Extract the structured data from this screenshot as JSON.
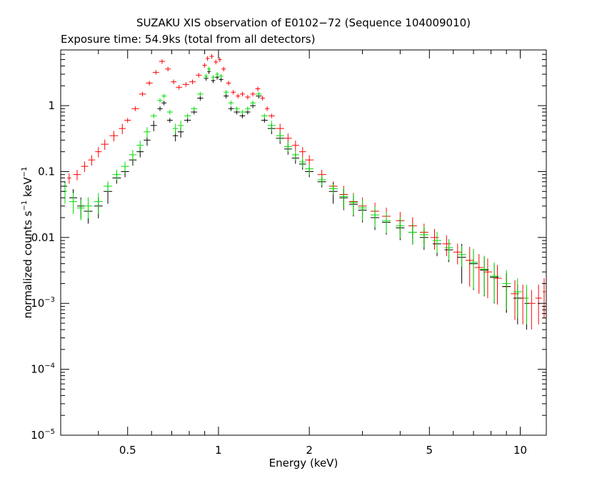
{
  "chart_data": {
    "type": "scatter",
    "title": "SUZAKU XIS observation of E0102−72 (Sequence 104009010)",
    "subtitle": "Exposure time: 54.9ks (total from all detectors)",
    "xlabel": "Energy (keV)",
    "ylabel_text": "normalized counts s",
    "ylabel_unit": "keV",
    "ylabel_exp": "−1",
    "xscale": "log",
    "yscale": "log",
    "xlim": [
      0.3,
      12.2
    ],
    "ylim": [
      1e-05,
      7
    ],
    "grid": false,
    "x_ticks": [
      {
        "value": 0.5,
        "label": "0.5"
      },
      {
        "value": 1,
        "label": "1"
      },
      {
        "value": 2,
        "label": "2"
      },
      {
        "value": 5,
        "label": "5"
      },
      {
        "value": 10,
        "label": "10"
      }
    ],
    "y_ticks": [
      {
        "value": 1,
        "mantissa": "1",
        "exponent": ""
      },
      {
        "value": 0.1,
        "mantissa": "0.1",
        "exponent": ""
      },
      {
        "value": 0.01,
        "mantissa": "0.01",
        "exponent": ""
      },
      {
        "value": 0.001,
        "mantissa": "10",
        "exponent": "−3"
      },
      {
        "value": 0.0001,
        "mantissa": "10",
        "exponent": "−4"
      },
      {
        "value": 1e-05,
        "mantissa": "10",
        "exponent": "−5"
      }
    ],
    "series": [
      {
        "color": "#ff0000",
        "points": [
          [
            0.32,
            0.08
          ],
          [
            0.34,
            0.09
          ],
          [
            0.36,
            0.12
          ],
          [
            0.38,
            0.15
          ],
          [
            0.4,
            0.2
          ],
          [
            0.42,
            0.26
          ],
          [
            0.45,
            0.35
          ],
          [
            0.48,
            0.45
          ],
          [
            0.5,
            0.6
          ],
          [
            0.53,
            0.9
          ],
          [
            0.56,
            1.5
          ],
          [
            0.59,
            2.2
          ],
          [
            0.62,
            3.2
          ],
          [
            0.65,
            4.7
          ],
          [
            0.68,
            3.6
          ],
          [
            0.71,
            2.3
          ],
          [
            0.74,
            1.9
          ],
          [
            0.78,
            2.1
          ],
          [
            0.82,
            2.3
          ],
          [
            0.86,
            2.9
          ],
          [
            0.9,
            4.1
          ],
          [
            0.92,
            5.2
          ],
          [
            0.95,
            5.6
          ],
          [
            0.98,
            4.6
          ],
          [
            1.01,
            5.0
          ],
          [
            1.04,
            3.6
          ],
          [
            1.08,
            2.2
          ],
          [
            1.12,
            1.6
          ],
          [
            1.16,
            1.4
          ],
          [
            1.2,
            1.5
          ],
          [
            1.25,
            1.35
          ],
          [
            1.3,
            1.5
          ],
          [
            1.35,
            1.8
          ],
          [
            1.4,
            1.3
          ],
          [
            1.45,
            0.9
          ],
          [
            1.5,
            0.7
          ],
          [
            1.6,
            0.45
          ],
          [
            1.7,
            0.32
          ],
          [
            1.8,
            0.25
          ],
          [
            1.9,
            0.2
          ],
          [
            2.0,
            0.15
          ],
          [
            2.2,
            0.09
          ],
          [
            2.4,
            0.06
          ],
          [
            2.6,
            0.045
          ],
          [
            2.8,
            0.035
          ],
          [
            3.0,
            0.03
          ],
          [
            3.3,
            0.025
          ],
          [
            3.6,
            0.021
          ],
          [
            4.0,
            0.018
          ],
          [
            4.4,
            0.015
          ],
          [
            4.8,
            0.012
          ],
          [
            5.2,
            0.01
          ],
          [
            5.7,
            0.008
          ],
          [
            6.2,
            0.006
          ],
          [
            6.8,
            0.0045
          ],
          [
            7.3,
            0.0035
          ],
          [
            7.8,
            0.003
          ],
          [
            8.4,
            0.0024
          ],
          [
            9.0,
            0.0018
          ],
          [
            9.6,
            0.0014
          ],
          [
            10.2,
            0.0012
          ],
          [
            10.9,
            0.001
          ],
          [
            11.5,
            0.0012
          ],
          [
            12.0,
            0.0015
          ]
        ]
      },
      {
        "color": "#000000",
        "points": [
          [
            0.31,
            0.06
          ],
          [
            0.33,
            0.04
          ],
          [
            0.35,
            0.03
          ],
          [
            0.37,
            0.025
          ],
          [
            0.4,
            0.03
          ],
          [
            0.43,
            0.05
          ],
          [
            0.46,
            0.08
          ],
          [
            0.49,
            0.1
          ],
          [
            0.52,
            0.15
          ],
          [
            0.55,
            0.2
          ],
          [
            0.58,
            0.3
          ],
          [
            0.61,
            0.5
          ],
          [
            0.64,
            0.9
          ],
          [
            0.66,
            1.1
          ],
          [
            0.69,
            0.6
          ],
          [
            0.72,
            0.35
          ],
          [
            0.75,
            0.4
          ],
          [
            0.79,
            0.6
          ],
          [
            0.83,
            0.8
          ],
          [
            0.87,
            1.3
          ],
          [
            0.91,
            2.6
          ],
          [
            0.93,
            3.3
          ],
          [
            0.96,
            2.4
          ],
          [
            0.99,
            2.7
          ],
          [
            1.02,
            2.5
          ],
          [
            1.06,
            1.4
          ],
          [
            1.1,
            0.9
          ],
          [
            1.15,
            0.8
          ],
          [
            1.2,
            0.7
          ],
          [
            1.25,
            0.8
          ],
          [
            1.3,
            1.0
          ],
          [
            1.36,
            1.4
          ],
          [
            1.42,
            0.6
          ],
          [
            1.5,
            0.45
          ],
          [
            1.6,
            0.32
          ],
          [
            1.7,
            0.22
          ],
          [
            1.8,
            0.16
          ],
          [
            1.9,
            0.13
          ],
          [
            2.0,
            0.1
          ],
          [
            2.2,
            0.07
          ],
          [
            2.4,
            0.05
          ],
          [
            2.6,
            0.04
          ],
          [
            2.8,
            0.032
          ],
          [
            3.0,
            0.026
          ],
          [
            3.3,
            0.02
          ],
          [
            3.6,
            0.017
          ],
          [
            4.0,
            0.014
          ],
          [
            4.4,
            0.012
          ],
          [
            4.8,
            0.01
          ],
          [
            5.3,
            0.008
          ],
          [
            5.8,
            0.0065
          ],
          [
            6.4,
            0.005
          ],
          [
            7.0,
            0.004
          ],
          [
            7.6,
            0.0032
          ],
          [
            8.2,
            0.0025
          ],
          [
            9.0,
            0.0018
          ],
          [
            9.8,
            0.0012
          ],
          [
            10.5,
            0.001
          ]
        ]
      },
      {
        "color": "#00dd00",
        "points": [
          [
            0.31,
            0.05
          ],
          [
            0.33,
            0.035
          ],
          [
            0.35,
            0.028
          ],
          [
            0.37,
            0.03
          ],
          [
            0.4,
            0.035
          ],
          [
            0.43,
            0.06
          ],
          [
            0.46,
            0.09
          ],
          [
            0.49,
            0.12
          ],
          [
            0.52,
            0.18
          ],
          [
            0.55,
            0.25
          ],
          [
            0.58,
            0.4
          ],
          [
            0.61,
            0.7
          ],
          [
            0.64,
            1.2
          ],
          [
            0.66,
            1.4
          ],
          [
            0.69,
            0.8
          ],
          [
            0.72,
            0.45
          ],
          [
            0.75,
            0.5
          ],
          [
            0.79,
            0.7
          ],
          [
            0.83,
            0.9
          ],
          [
            0.87,
            1.5
          ],
          [
            0.91,
            2.8
          ],
          [
            0.93,
            3.6
          ],
          [
            0.96,
            2.7
          ],
          [
            0.99,
            3.0
          ],
          [
            1.02,
            2.8
          ],
          [
            1.06,
            1.6
          ],
          [
            1.1,
            1.1
          ],
          [
            1.15,
            0.9
          ],
          [
            1.2,
            0.8
          ],
          [
            1.25,
            0.9
          ],
          [
            1.3,
            1.1
          ],
          [
            1.36,
            1.5
          ],
          [
            1.42,
            0.7
          ],
          [
            1.5,
            0.5
          ],
          [
            1.6,
            0.35
          ],
          [
            1.7,
            0.24
          ],
          [
            1.8,
            0.18
          ],
          [
            1.9,
            0.14
          ],
          [
            2.0,
            0.11
          ],
          [
            2.2,
            0.075
          ],
          [
            2.4,
            0.055
          ],
          [
            2.6,
            0.042
          ],
          [
            2.8,
            0.034
          ],
          [
            3.0,
            0.028
          ],
          [
            3.3,
            0.022
          ],
          [
            3.6,
            0.018
          ],
          [
            4.0,
            0.015
          ],
          [
            4.4,
            0.012
          ],
          [
            4.8,
            0.011
          ],
          [
            5.3,
            0.009
          ],
          [
            5.8,
            0.007
          ],
          [
            6.4,
            0.0055
          ],
          [
            7.0,
            0.0042
          ],
          [
            7.6,
            0.0033
          ],
          [
            8.2,
            0.0026
          ],
          [
            9.0,
            0.002
          ],
          [
            9.8,
            0.0015
          ],
          [
            10.5,
            0.0012
          ]
        ]
      }
    ]
  }
}
